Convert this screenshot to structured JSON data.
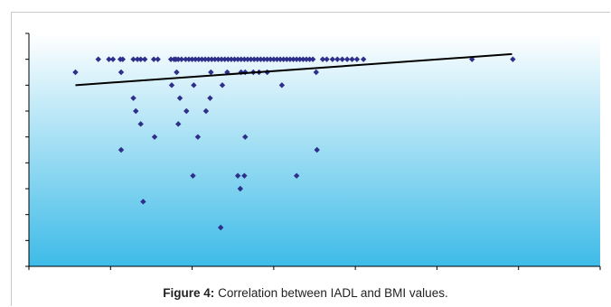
{
  "chart_data": {
    "type": "scatter",
    "title": "",
    "xlabel": "",
    "ylabel": "",
    "xlim": [
      0,
      70
    ],
    "ylim": [
      0,
      9
    ],
    "x_tick_count": 8,
    "y_tick_count": 9,
    "grid": false,
    "legend": "none",
    "colors": {
      "plot_bg_top": "#ffffff",
      "plot_bg_bottom": "#3dbbe8",
      "point": "#2e2f8a",
      "trendline": "#000000",
      "axis": "#000000"
    },
    "points": [
      [
        5.7,
        7.5
      ],
      [
        8.5,
        8
      ],
      [
        9.8,
        8
      ],
      [
        10.3,
        8
      ],
      [
        11.2,
        8
      ],
      [
        11.3,
        7.5
      ],
      [
        11.5,
        8
      ],
      [
        12.8,
        8
      ],
      [
        13.3,
        8
      ],
      [
        13.7,
        8
      ],
      [
        14.2,
        8
      ],
      [
        15.3,
        8
      ],
      [
        15.8,
        8
      ],
      [
        17.4,
        8
      ],
      [
        17.8,
        8
      ],
      [
        18,
        8
      ],
      [
        18.3,
        8
      ],
      [
        18.7,
        8
      ],
      [
        19.2,
        8
      ],
      [
        19.6,
        8
      ],
      [
        20,
        8
      ],
      [
        20.4,
        8
      ],
      [
        20.8,
        8
      ],
      [
        21.2,
        8
      ],
      [
        21.6,
        8
      ],
      [
        22,
        8
      ],
      [
        22.4,
        8
      ],
      [
        22.8,
        8
      ],
      [
        23.2,
        8
      ],
      [
        23.6,
        8
      ],
      [
        24,
        8
      ],
      [
        24.4,
        8
      ],
      [
        24.8,
        8
      ],
      [
        25.2,
        8
      ],
      [
        25.6,
        8
      ],
      [
        26,
        8
      ],
      [
        26.4,
        8
      ],
      [
        26.8,
        8
      ],
      [
        27.2,
        8
      ],
      [
        27.6,
        8
      ],
      [
        28,
        8
      ],
      [
        28.4,
        8
      ],
      [
        28.8,
        8
      ],
      [
        29.2,
        8
      ],
      [
        29.6,
        8
      ],
      [
        30,
        8
      ],
      [
        30.4,
        8
      ],
      [
        30.8,
        8
      ],
      [
        31.2,
        8
      ],
      [
        31.6,
        8
      ],
      [
        32,
        8
      ],
      [
        32.4,
        8
      ],
      [
        32.8,
        8
      ],
      [
        33.2,
        8
      ],
      [
        33.6,
        8
      ],
      [
        34,
        8
      ],
      [
        34.4,
        8
      ],
      [
        34.8,
        8
      ],
      [
        36,
        8
      ],
      [
        36.5,
        8
      ],
      [
        37.2,
        8
      ],
      [
        37.8,
        8
      ],
      [
        38.4,
        8
      ],
      [
        39,
        8
      ],
      [
        39.6,
        8
      ],
      [
        40.2,
        8
      ],
      [
        41,
        8
      ],
      [
        54.3,
        8
      ],
      [
        59.3,
        8
      ],
      [
        17.5,
        7
      ],
      [
        18.1,
        7.5
      ],
      [
        20.2,
        7
      ],
      [
        22.3,
        7.5
      ],
      [
        23.7,
        7
      ],
      [
        24.3,
        7.5
      ],
      [
        26,
        7.5
      ],
      [
        26.5,
        7.5
      ],
      [
        27.5,
        7.5
      ],
      [
        28.2,
        7.5
      ],
      [
        29.2,
        7.5
      ],
      [
        31,
        7
      ],
      [
        35.2,
        7.5
      ],
      [
        12.8,
        6.5
      ],
      [
        18.5,
        6.5
      ],
      [
        22.2,
        6.5
      ],
      [
        13.1,
        6
      ],
      [
        19.3,
        6
      ],
      [
        21.7,
        6
      ],
      [
        13.7,
        5.5
      ],
      [
        18.3,
        5.5
      ],
      [
        15.4,
        5
      ],
      [
        20.7,
        5
      ],
      [
        26.5,
        5
      ],
      [
        11.3,
        4.5
      ],
      [
        35.3,
        4.5
      ],
      [
        20.1,
        3.5
      ],
      [
        25.6,
        3.5
      ],
      [
        26.4,
        3.5
      ],
      [
        32.8,
        3.5
      ],
      [
        25.9,
        3
      ],
      [
        14,
        2.5
      ],
      [
        23.5,
        1.5
      ]
    ],
    "trendline": {
      "x": [
        5.7,
        59.2
      ],
      "y": [
        7.0,
        8.2
      ]
    }
  },
  "caption": {
    "label": "Figure 4:",
    "text": " Correlation between IADL and BMI values."
  }
}
